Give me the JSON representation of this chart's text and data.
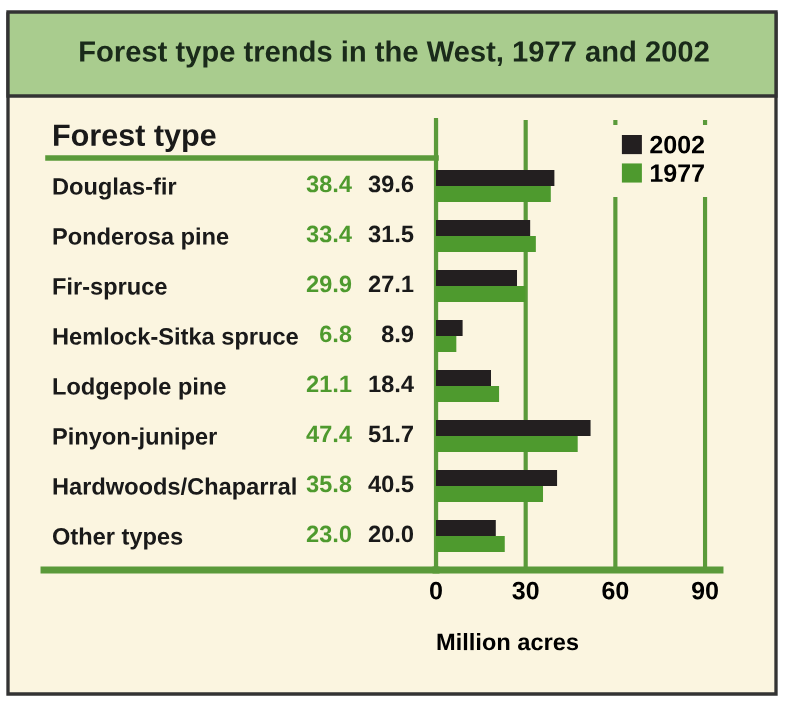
{
  "chart_data": {
    "type": "bar",
    "orientation": "horizontal",
    "title": "Forest type trends in the West, 1977 and 2002",
    "ylabel": "Forest type",
    "xlabel": "Million acres",
    "categories": [
      "Douglas-fir",
      "Ponderosa pine",
      "Fir-spruce",
      "Hemlock-Sitka spruce",
      "Lodgepole pine",
      "Pinyon-juniper",
      "Hardwoods/Chaparral",
      "Other types"
    ],
    "series": [
      {
        "name": "2002",
        "color": "#231f20",
        "values": [
          39.6,
          31.5,
          27.1,
          8.9,
          18.4,
          51.7,
          40.5,
          20.0
        ],
        "value_labels": [
          "39.6",
          "31.5",
          "27.1",
          "8.9",
          "18.4",
          "51.7",
          "40.5",
          "20.0"
        ]
      },
      {
        "name": "1977",
        "color": "#4e9a2e",
        "values": [
          38.4,
          33.4,
          29.9,
          6.8,
          21.1,
          47.4,
          35.8,
          23.0
        ],
        "value_labels": [
          "38.4",
          "33.4",
          "29.9",
          "6.8",
          "21.1",
          "47.4",
          "35.8",
          "23.0"
        ]
      }
    ],
    "xlim": [
      0,
      95
    ],
    "xticks": [
      0,
      30,
      60,
      90
    ],
    "grid": "x",
    "legend": "top right"
  }
}
